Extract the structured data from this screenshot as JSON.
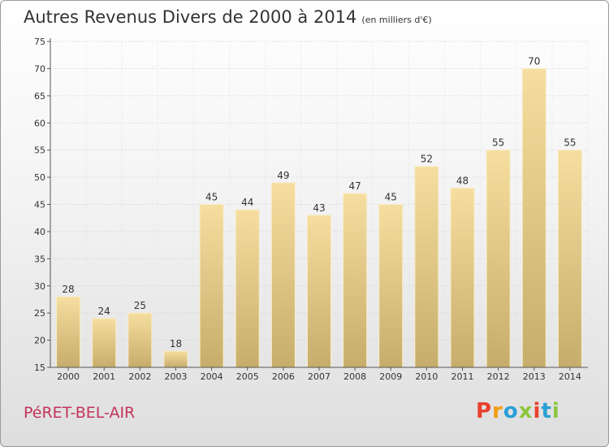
{
  "header": {
    "title": "Autres Revenus Divers de 2000 à 2014",
    "subtitle": "(en milliers d'€)"
  },
  "footer": {
    "commune": "PéRET-BEL-AIR",
    "logo_text": "Proxiti"
  },
  "colors": {
    "bar_light": "#f6dea0",
    "bar_dark": "#c7ad6b",
    "commune": "#c4345c",
    "logo": [
      "#e8412e",
      "#f39c12",
      "#2a9fd6",
      "#8cc63f",
      "#e8412e",
      "#2a9fd6",
      "#8cc63f"
    ]
  },
  "chart_data": {
    "type": "bar",
    "title": "Autres Revenus Divers de 2000 à 2014",
    "subtitle": "(en milliers d'€)",
    "categories": [
      "2000",
      "2001",
      "2002",
      "2003",
      "2004",
      "2005",
      "2006",
      "2007",
      "2008",
      "2009",
      "2010",
      "2011",
      "2012",
      "2013",
      "2014"
    ],
    "values": [
      28,
      24,
      25,
      18,
      45,
      44,
      49,
      43,
      47,
      45,
      52,
      48,
      55,
      70,
      55
    ],
    "ylim": [
      15,
      75
    ],
    "yticks": [
      15,
      20,
      25,
      30,
      35,
      40,
      45,
      50,
      55,
      60,
      65,
      70,
      75
    ],
    "grid": true,
    "data_labels": true
  }
}
